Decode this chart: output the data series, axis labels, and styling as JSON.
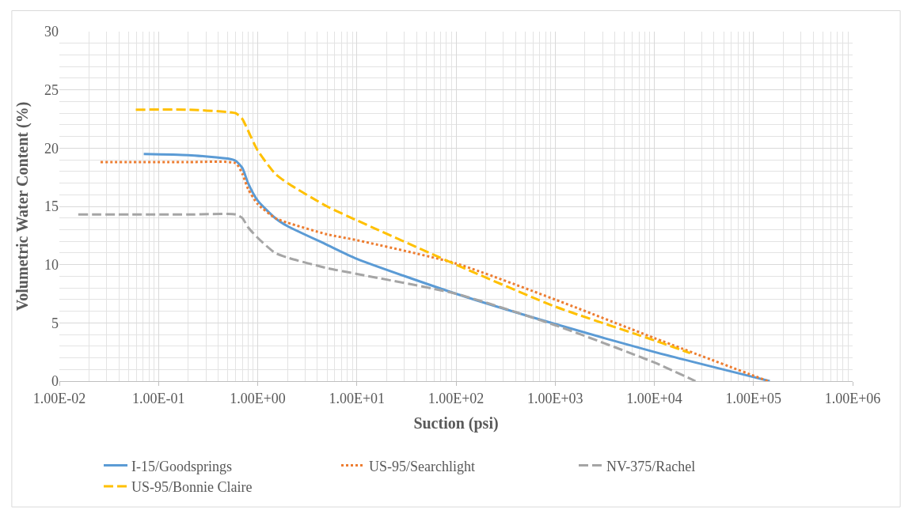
{
  "chart_data": {
    "type": "line",
    "xlabel": "Suction (psi)",
    "ylabel": "Volumetric Water Content (%)",
    "log": "x",
    "xlim": [
      0.01,
      1000000
    ],
    "xticks": [
      {
        "value": 0.01,
        "label": "1.00E-02"
      },
      {
        "value": 0.1,
        "label": "1.00E-01"
      },
      {
        "value": 1,
        "label": "1.00E+00"
      },
      {
        "value": 10,
        "label": "1.00E+01"
      },
      {
        "value": 100,
        "label": "1.00E+02"
      },
      {
        "value": 1000,
        "label": "1.00E+03"
      },
      {
        "value": 10000,
        "label": "1.00E+04"
      },
      {
        "value": 100000,
        "label": "1.00E+05"
      },
      {
        "value": 1000000,
        "label": "1.00E+06"
      }
    ],
    "ylim": [
      0,
      30
    ],
    "yticks": [
      0,
      5,
      10,
      15,
      20,
      25,
      30
    ],
    "grid": true,
    "legend": "bottom",
    "series": [
      {
        "name": "I-15/Goodsprings",
        "color": "#5b9bd5",
        "line_style": "solid",
        "x": [
          0.071,
          0.2,
          0.5,
          0.6,
          0.7,
          0.8,
          1.0,
          1.5,
          2,
          5,
          10,
          100,
          1000,
          10000,
          146000
        ],
        "values": [
          19.5,
          19.4,
          19.1,
          18.9,
          18.3,
          17.0,
          15.5,
          14.0,
          13.3,
          11.7,
          10.5,
          7.5,
          4.9,
          2.5,
          0
        ]
      },
      {
        "name": "US-95/Searchlight",
        "color": "#ed7d31",
        "line_style": "dotted",
        "x": [
          0.026,
          0.2,
          0.6,
          0.7,
          0.8,
          1.0,
          1.5,
          2,
          5,
          10,
          100,
          1000,
          10000,
          140000
        ],
        "values": [
          18.8,
          18.8,
          18.7,
          17.8,
          16.5,
          15.2,
          14.0,
          13.6,
          12.6,
          12.1,
          10.1,
          7.0,
          3.7,
          0
        ]
      },
      {
        "name": "NV-375/Rachel",
        "color": "#a5a5a5",
        "line_style": "dashed",
        "x": [
          0.0155,
          0.2,
          0.6,
          0.7,
          0.8,
          1.0,
          1.5,
          2,
          5,
          10,
          100,
          1000,
          10000,
          26000
        ],
        "values": [
          14.3,
          14.3,
          14.3,
          14.0,
          13.2,
          12.3,
          11.0,
          10.6,
          9.7,
          9.2,
          7.5,
          4.8,
          1.6,
          0
        ]
      },
      {
        "name": "US-95/Bonnie Claire",
        "color": "#ffc000",
        "line_style": "dashed",
        "x": [
          0.059,
          0.2,
          0.5,
          0.6,
          0.7,
          0.8,
          1.0,
          1.5,
          2,
          5,
          10,
          100,
          1000,
          10000,
          23000
        ],
        "values": [
          23.3,
          23.3,
          23.1,
          23.0,
          22.5,
          21.5,
          19.8,
          17.8,
          17.0,
          15.0,
          13.8,
          10.0,
          6.4,
          3.5,
          2.4
        ]
      }
    ]
  }
}
